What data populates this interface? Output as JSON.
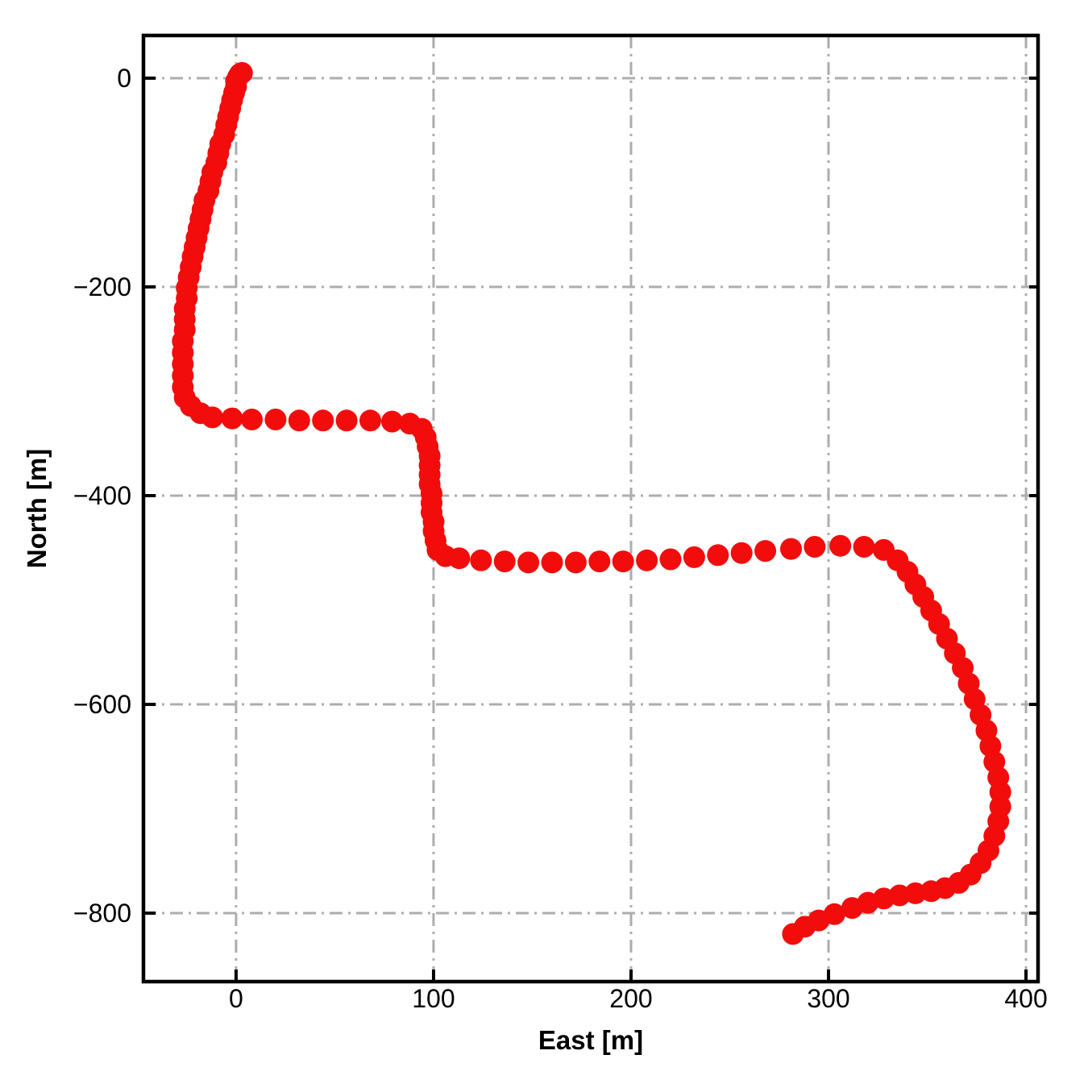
{
  "chart_data": {
    "type": "scatter",
    "title": "",
    "xlabel": "East [m]",
    "ylabel": "North [m]",
    "legend": null,
    "grid": true,
    "grid_style": "dash-dot",
    "grid_color": "#adadad",
    "marker": "circle",
    "marker_color": "#f20c0c",
    "axis_color": "#000000",
    "xlim": [
      -46.9,
      406.1
    ],
    "ylim": [
      -865.6,
      40.9
    ],
    "x_ticks": {
      "values": [
        0,
        100,
        200,
        300,
        400
      ],
      "labels": [
        "0",
        "100",
        "200",
        "300",
        "400"
      ]
    },
    "y_ticks": {
      "values": [
        0,
        -200,
        -400,
        -600,
        -800
      ],
      "labels": [
        "0",
        "−200",
        "−400",
        "−600",
        "−800"
      ]
    },
    "series_name": "vehicle-trajectory",
    "points": [
      [
        3,
        5
      ],
      [
        2,
        4
      ],
      [
        1,
        1
      ],
      [
        0,
        -3
      ],
      [
        0,
        -8
      ],
      [
        -1,
        -14
      ],
      [
        -2,
        -21
      ],
      [
        -3,
        -29
      ],
      [
        -4,
        -37
      ],
      [
        -5,
        -45
      ],
      [
        -6,
        -54
      ],
      [
        -8,
        -63
      ],
      [
        -9,
        -72
      ],
      [
        -10,
        -81
      ],
      [
        -12,
        -90
      ],
      [
        -13,
        -99
      ],
      [
        -14,
        -108
      ],
      [
        -16,
        -117
      ],
      [
        -17,
        -126
      ],
      [
        -18,
        -135
      ],
      [
        -19,
        -144
      ],
      [
        -20,
        -153
      ],
      [
        -21,
        -162
      ],
      [
        -22,
        -171
      ],
      [
        -23,
        -181
      ],
      [
        -24,
        -191
      ],
      [
        -25,
        -201
      ],
      [
        -25,
        -211
      ],
      [
        -26,
        -221
      ],
      [
        -26,
        -231
      ],
      [
        -26,
        -241
      ],
      [
        -27,
        -252
      ],
      [
        -27,
        -263
      ],
      [
        -27,
        -274
      ],
      [
        -27,
        -285
      ],
      [
        -27,
        -296
      ],
      [
        -26,
        -306
      ],
      [
        -23,
        -314
      ],
      [
        -18,
        -321
      ],
      [
        -12,
        -325
      ],
      [
        -2,
        -326
      ],
      [
        8,
        -327
      ],
      [
        20,
        -327
      ],
      [
        32,
        -328
      ],
      [
        44,
        -328
      ],
      [
        56,
        -328
      ],
      [
        68,
        -328
      ],
      [
        79,
        -329
      ],
      [
        88,
        -331
      ],
      [
        94,
        -336
      ],
      [
        96,
        -344
      ],
      [
        97,
        -353
      ],
      [
        98,
        -362
      ],
      [
        98,
        -371
      ],
      [
        98,
        -380
      ],
      [
        98,
        -389
      ],
      [
        99,
        -398
      ],
      [
        99,
        -407
      ],
      [
        99,
        -416
      ],
      [
        100,
        -425
      ],
      [
        100,
        -434
      ],
      [
        101,
        -443
      ],
      [
        102,
        -452
      ],
      [
        106,
        -458
      ],
      [
        113,
        -460
      ],
      [
        124,
        -462
      ],
      [
        136,
        -463
      ],
      [
        148,
        -464
      ],
      [
        160,
        -464
      ],
      [
        172,
        -464
      ],
      [
        184,
        -463
      ],
      [
        196,
        -463
      ],
      [
        208,
        -462
      ],
      [
        220,
        -461
      ],
      [
        232,
        -459
      ],
      [
        244,
        -457
      ],
      [
        256,
        -455
      ],
      [
        268,
        -453
      ],
      [
        281,
        -451
      ],
      [
        293,
        -449
      ],
      [
        306,
        -448
      ],
      [
        318,
        -449
      ],
      [
        328,
        -452
      ],
      [
        335,
        -462
      ],
      [
        340,
        -473
      ],
      [
        344,
        -485
      ],
      [
        348,
        -497
      ],
      [
        352,
        -510
      ],
      [
        356,
        -523
      ],
      [
        360,
        -537
      ],
      [
        364,
        -551
      ],
      [
        368,
        -565
      ],
      [
        371,
        -580
      ],
      [
        374,
        -595
      ],
      [
        377,
        -610
      ],
      [
        380,
        -625
      ],
      [
        382,
        -640
      ],
      [
        384,
        -655
      ],
      [
        386,
        -670
      ],
      [
        387,
        -684
      ],
      [
        387,
        -698
      ],
      [
        386,
        -712
      ],
      [
        384,
        -726
      ],
      [
        381,
        -740
      ],
      [
        377,
        -752
      ],
      [
        372,
        -763
      ],
      [
        366,
        -771
      ],
      [
        359,
        -776
      ],
      [
        352,
        -779
      ],
      [
        344,
        -781
      ],
      [
        336,
        -783
      ],
      [
        328,
        -786
      ],
      [
        320,
        -790
      ],
      [
        312,
        -795
      ],
      [
        303,
        -801
      ],
      [
        295,
        -807
      ],
      [
        288,
        -813
      ],
      [
        282,
        -820
      ]
    ]
  }
}
